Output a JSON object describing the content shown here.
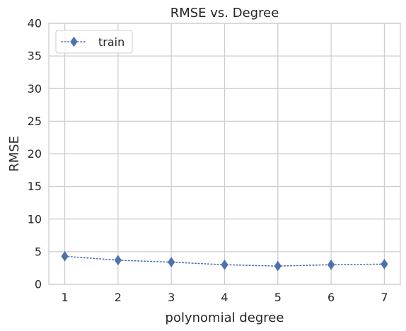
{
  "chart_data": {
    "type": "line",
    "title": "RMSE vs. Degree",
    "xlabel": "polynomial degree",
    "ylabel": "RMSE",
    "xlim": [
      0.7,
      7.3
    ],
    "ylim": [
      0,
      40
    ],
    "xticks": [
      1,
      2,
      3,
      4,
      5,
      6,
      7
    ],
    "yticks": [
      0,
      5,
      10,
      15,
      20,
      25,
      30,
      35,
      40
    ],
    "grid": true,
    "legend_position": "top-left",
    "series": [
      {
        "name": "train",
        "color": "#4c72b0",
        "line_style": "dotted",
        "marker": "diamond",
        "x": [
          1,
          2,
          3,
          4,
          5,
          6,
          7
        ],
        "y": [
          4.3,
          3.7,
          3.4,
          3.0,
          2.8,
          3.0,
          3.1
        ]
      }
    ]
  }
}
